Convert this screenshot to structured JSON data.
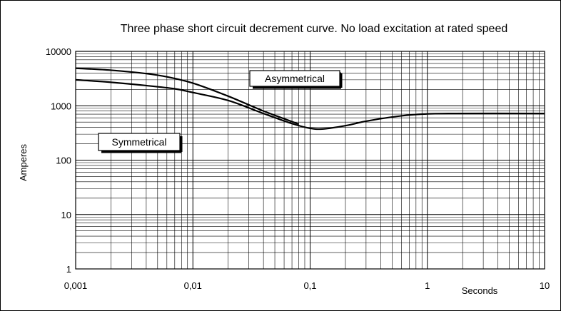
{
  "chart_data": {
    "type": "line",
    "title": "Three phase short circuit decrement curve. No load excitation at rated speed",
    "xlabel": "Seconds",
    "ylabel": "Amperes",
    "x_scale": "log",
    "y_scale": "log",
    "xlim": [
      0.001,
      10
    ],
    "ylim": [
      1,
      10000
    ],
    "grid": true,
    "x_tick_labels": [
      "0,001",
      "0,01",
      "0,1",
      "1",
      "10"
    ],
    "y_tick_labels": [
      "1",
      "10",
      "100",
      "1000",
      "10000"
    ],
    "series": [
      {
        "name": "Asymmetrical",
        "points": [
          [
            0.001,
            4900
          ],
          [
            0.002,
            4500
          ],
          [
            0.004,
            3900
          ],
          [
            0.006,
            3400
          ],
          [
            0.01,
            2600
          ],
          [
            0.02,
            1500
          ],
          [
            0.04,
            800
          ],
          [
            0.08,
            460
          ]
        ]
      },
      {
        "name": "Symmetrical",
        "points": [
          [
            0.001,
            3000
          ],
          [
            0.002,
            2700
          ],
          [
            0.004,
            2350
          ],
          [
            0.007,
            2050
          ],
          [
            0.01,
            1750
          ],
          [
            0.02,
            1250
          ],
          [
            0.04,
            720
          ],
          [
            0.07,
            470
          ],
          [
            0.1,
            385
          ],
          [
            0.13,
            375
          ],
          [
            0.2,
            430
          ],
          [
            0.3,
            520
          ],
          [
            0.5,
            620
          ],
          [
            0.8,
            690
          ],
          [
            1.5,
            720
          ],
          [
            10,
            720
          ]
        ]
      }
    ],
    "annotations": [
      {
        "text": "Asymmetrical"
      },
      {
        "text": "Symmetrical"
      }
    ]
  }
}
